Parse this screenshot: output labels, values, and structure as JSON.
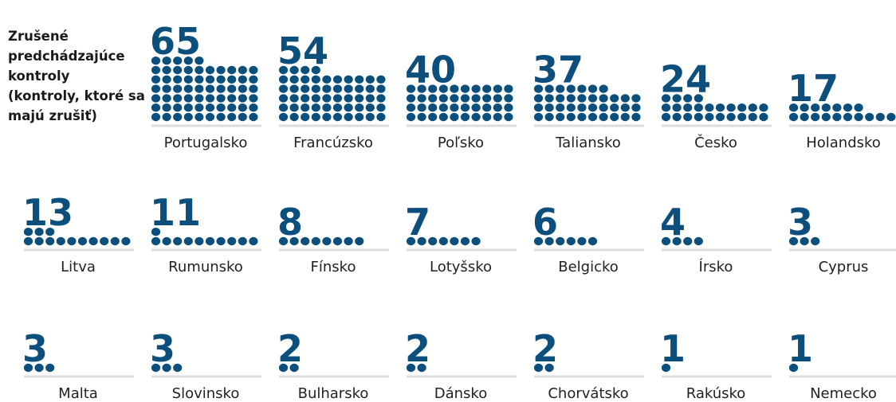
{
  "chart_data": {
    "type": "pictogram",
    "title": "Zrušené predchádzajúce kontroly (kontroly, ktoré sa majú zrušiť)",
    "categories": [
      "Portugalsko",
      "Francúzsko",
      "Poľsko",
      "Taliansko",
      "Česko",
      "Holandsko",
      "Litva",
      "Rumunsko",
      "Fínsko",
      "Lotyšsko",
      "Belgicko",
      "Írsko",
      "Cyprus",
      "Malta",
      "Slovinsko",
      "Bulharsko",
      "Dánsko",
      "Chorvátsko",
      "Rakúsko",
      "Nemecko"
    ],
    "values": [
      65,
      54,
      40,
      37,
      24,
      17,
      13,
      11,
      8,
      7,
      6,
      4,
      3,
      3,
      3,
      2,
      2,
      2,
      1,
      1
    ],
    "color": "#0d4f7c"
  }
}
